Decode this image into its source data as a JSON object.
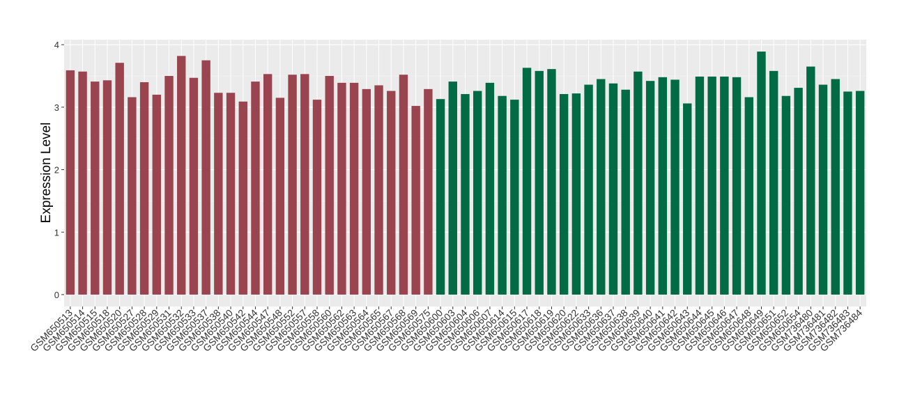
{
  "chart_data": {
    "type": "bar",
    "y_label": "Expression Level",
    "categories": [
      "GSM650513",
      "GSM650514",
      "GSM650515",
      "GSM650518",
      "GSM650520",
      "GSM650527",
      "GSM650528",
      "GSM650529",
      "GSM650531",
      "GSM650532",
      "GSM650533",
      "GSM650537",
      "GSM650538",
      "GSM650540",
      "GSM650542",
      "GSM650544",
      "GSM650547",
      "GSM650548",
      "GSM650552",
      "GSM650557",
      "GSM650558",
      "GSM650560",
      "GSM650562",
      "GSM650563",
      "GSM650564",
      "GSM650565",
      "GSM650567",
      "GSM650568",
      "GSM650569",
      "GSM650575",
      "GSM650600",
      "GSM650603",
      "GSM650604",
      "GSM650606",
      "GSM650607",
      "GSM650614",
      "GSM650615",
      "GSM650617",
      "GSM650618",
      "GSM650619",
      "GSM650620",
      "GSM650622",
      "GSM650633",
      "GSM650636",
      "GSM650637",
      "GSM650638",
      "GSM650639",
      "GSM650640",
      "GSM650641",
      "GSM650642",
      "GSM650643",
      "GSM650644",
      "GSM650645",
      "GSM650646",
      "GSM650647",
      "GSM650648",
      "GSM650649",
      "GSM650651",
      "GSM650652",
      "GSM650654",
      "GSM736480",
      "GSM736481",
      "GSM736482",
      "GSM736483",
      "GSM736484"
    ],
    "values": [
      3.59,
      3.57,
      3.41,
      3.43,
      3.71,
      3.16,
      3.4,
      3.2,
      3.5,
      3.82,
      3.47,
      3.75,
      3.23,
      3.23,
      3.09,
      3.41,
      3.53,
      3.15,
      3.52,
      3.53,
      3.12,
      3.5,
      3.39,
      3.39,
      3.29,
      3.35,
      3.26,
      3.52,
      3.02,
      3.29,
      3.13,
      3.41,
      3.21,
      3.26,
      3.39,
      3.18,
      3.12,
      3.63,
      3.58,
      3.61,
      3.21,
      3.22,
      3.36,
      3.45,
      3.38,
      3.28,
      3.57,
      3.42,
      3.48,
      3.44,
      3.06,
      3.49,
      3.49,
      3.49,
      3.48,
      3.16,
      3.89,
      3.58,
      3.18,
      3.31,
      3.65,
      3.36,
      3.45,
      3.25,
      3.26
    ],
    "colors": [
      "#99444f",
      "#99444f",
      "#99444f",
      "#99444f",
      "#99444f",
      "#99444f",
      "#99444f",
      "#99444f",
      "#99444f",
      "#99444f",
      "#99444f",
      "#99444f",
      "#99444f",
      "#99444f",
      "#99444f",
      "#99444f",
      "#99444f",
      "#99444f",
      "#99444f",
      "#99444f",
      "#99444f",
      "#99444f",
      "#99444f",
      "#99444f",
      "#99444f",
      "#99444f",
      "#99444f",
      "#99444f",
      "#99444f",
      "#99444f",
      "#006b44",
      "#006b44",
      "#006b44",
      "#006b44",
      "#006b44",
      "#006b44",
      "#006b44",
      "#006b44",
      "#006b44",
      "#006b44",
      "#006b44",
      "#006b44",
      "#006b44",
      "#006b44",
      "#006b44",
      "#006b44",
      "#006b44",
      "#006b44",
      "#006b44",
      "#006b44",
      "#006b44",
      "#006b44",
      "#006b44",
      "#006b44",
      "#006b44",
      "#006b44",
      "#006b44",
      "#006b44",
      "#006b44",
      "#006b44",
      "#006b44",
      "#006b44",
      "#006b44",
      "#006b44",
      "#006b44"
    ],
    "ylim": [
      -0.19,
      4.08
    ],
    "yticks": [
      0,
      1,
      2,
      3,
      4
    ],
    "grid": true
  }
}
